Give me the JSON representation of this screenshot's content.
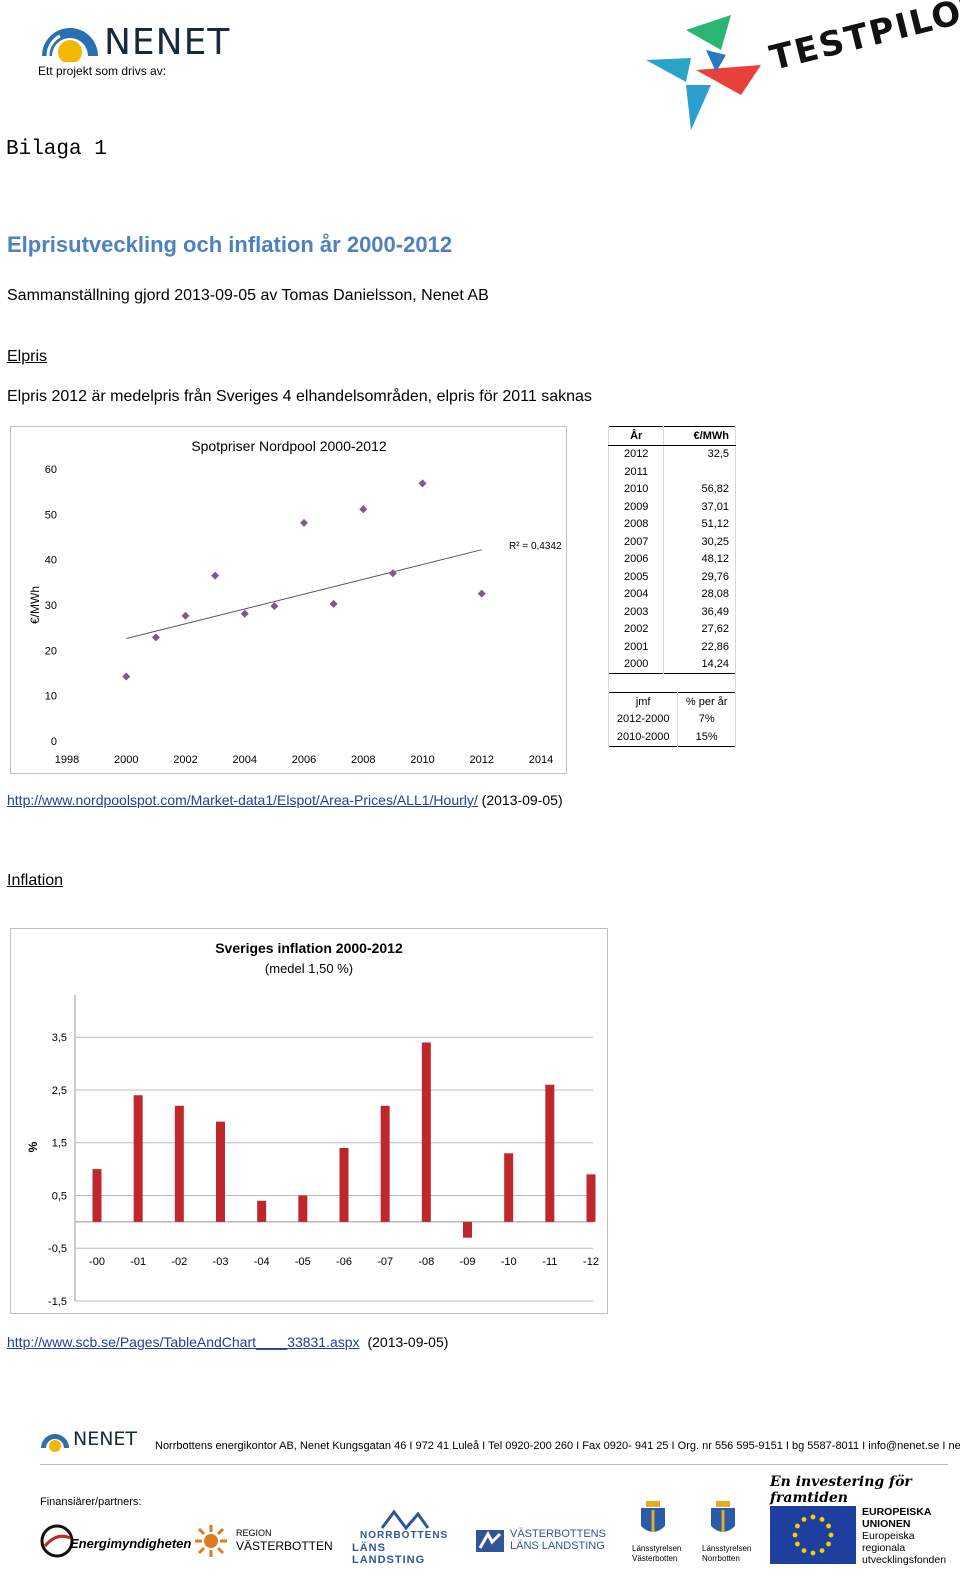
{
  "header": {
    "org_name": "NENET",
    "tagline": "Ett projekt som drivs av:",
    "partner_logo_text": "TESTPILOT"
  },
  "doc": {
    "annex": "Bilaga 1",
    "title": "Elprisutveckling och inflation år 2000-2012",
    "compiled": "Sammanställning gjord 2013-09-05 av Tomas Danielsson, Nenet AB",
    "section1": "Elpris",
    "section1_note": "Elpris 2012 är medelpris från Sveriges 4 elhandelsområden, elpris för 2011 saknas",
    "source1_url": "http://www.nordpoolspot.com/Market-data1/Elspot/Area-Prices/ALL1/Hourly/",
    "source1_date": "(2013-09-05)",
    "section2": "Inflation",
    "source2_url": "http://www.scb.se/Pages/TableAndChart____33831.aspx",
    "source2_date": "(2013-09-05)"
  },
  "price_table": {
    "headers": [
      "År",
      "€/MWh"
    ],
    "rows": [
      [
        "2012",
        "32,5"
      ],
      [
        "2011",
        ""
      ],
      [
        "2010",
        "56,82"
      ],
      [
        "2009",
        "37,01"
      ],
      [
        "2008",
        "51,12"
      ],
      [
        "2007",
        "30,25"
      ],
      [
        "2006",
        "48,12"
      ],
      [
        "2005",
        "29,76"
      ],
      [
        "2004",
        "28,08"
      ],
      [
        "2003",
        "36,49"
      ],
      [
        "2002",
        "27,62"
      ],
      [
        "2001",
        "22,86"
      ],
      [
        "2000",
        "14,24"
      ]
    ],
    "cmp_headers": [
      "jmf",
      "% per år"
    ],
    "cmp_rows": [
      [
        "2012-2000",
        "7%"
      ],
      [
        "2010-2000",
        "15%"
      ]
    ]
  },
  "chart_data": [
    {
      "type": "scatter",
      "title": "Spotpriser Nordpool 2000-2012",
      "xlabel": "",
      "ylabel": "€/MWh",
      "xlim": [
        1998,
        2014
      ],
      "ylim": [
        0,
        60
      ],
      "xticks": [
        "1998",
        "2000",
        "2002",
        "2004",
        "2006",
        "2008",
        "2010",
        "2012",
        "2014"
      ],
      "yticks": [
        "0",
        "10",
        "20",
        "30",
        "40",
        "50",
        "60"
      ],
      "x": [
        2000,
        2001,
        2002,
        2003,
        2004,
        2005,
        2006,
        2007,
        2008,
        2009,
        2010,
        2012
      ],
      "y": [
        14.24,
        22.86,
        27.62,
        36.49,
        28.08,
        29.76,
        48.12,
        30.25,
        51.12,
        37.01,
        56.82,
        32.5
      ],
      "trendline": {
        "x": [
          2000,
          2012
        ],
        "y": [
          22.6,
          42.2
        ]
      },
      "annotation": "R² = 0,4342",
      "marker_color": "#7b5a8c",
      "grid": false
    },
    {
      "type": "bar",
      "title": "Sveriges inflation 2000-2012",
      "subtitle": "(medel 1,50 %)",
      "xlabel": "",
      "ylabel": "%",
      "ylim": [
        -1.5,
        4.3
      ],
      "yticks": [
        "3,5",
        "2,5",
        "1,5",
        "0,5",
        "-0,5",
        "-1,5"
      ],
      "ytick_values": [
        3.5,
        2.5,
        1.5,
        0.5,
        -0.5,
        -1.5
      ],
      "categories": [
        "-00",
        "-01",
        "-02",
        "-03",
        "-04",
        "-05",
        "-06",
        "-07",
        "-08",
        "-09",
        "-10",
        "-11",
        "-12"
      ],
      "values": [
        1.0,
        2.4,
        2.2,
        1.9,
        0.4,
        0.5,
        1.4,
        2.2,
        3.4,
        -0.3,
        1.3,
        2.6,
        0.9
      ],
      "bar_color": "#c0272d",
      "grid": true
    }
  ],
  "footer": {
    "org_name": "NENET",
    "address_bold": "Norrbottens energikontor AB, Nenet",
    "address_rest": " Kungsgatan 46 I 972 41 Luleå I Tel 0920-200 260 I Fax 0920- 941 25 I Org. nr 556 595-9151 I bg 5587-8011 I info@nenet.se I nenet.se",
    "slogan": "En investering för framtiden",
    "financiers_label": "Finansiärer/partners:",
    "partners": [
      {
        "name": "Energimyndigheten"
      },
      {
        "name_top": "REGION",
        "name_bottom": "VÄSTERBOTTEN"
      },
      {
        "name_top": "NORRBOTTENS",
        "name_bottom": "LÄNS LANDSTING"
      },
      {
        "name_top": "VÄSTERBOTTENS",
        "name_bottom": "LÄNS LANDSTING"
      },
      {
        "name_top": "Länsstyrelsen",
        "name_bottom": "Västerbotten"
      },
      {
        "name_top": "Länsstyrelsen",
        "name_bottom": "Norrbotten"
      }
    ],
    "eu_lines": [
      "EUROPEISKA",
      "UNIONEN",
      "Europeiska",
      "regionala",
      "utvecklingsfonden"
    ]
  }
}
